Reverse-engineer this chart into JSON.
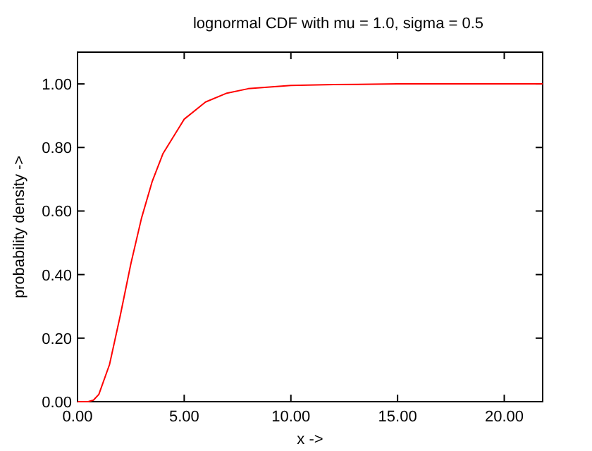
{
  "chart_data": {
    "type": "line",
    "title": "lognormal CDF with mu = 1.0, sigma = 0.5",
    "xlabel": "x ->",
    "ylabel": "probability density ->",
    "x": [
      0,
      0.3,
      0.5,
      0.75,
      1,
      1.5,
      2,
      2.5,
      3,
      3.5,
      4,
      5,
      6,
      7,
      8,
      10,
      12,
      15,
      20,
      21.8
    ],
    "series": [
      {
        "color": "#ff0000",
        "values": [
          0,
          0,
          0,
          0.005,
          0.023,
          0.117,
          0.27,
          0.434,
          0.578,
          0.693,
          0.78,
          0.889,
          0.943,
          0.971,
          0.985,
          0.995,
          0.998,
          1,
          1,
          1
        ]
      }
    ],
    "xlim": [
      0,
      21.8
    ],
    "ylim": [
      0,
      1.1
    ],
    "xticks": [
      {
        "value": 0,
        "label": "0.00"
      },
      {
        "value": 5,
        "label": "5.00"
      },
      {
        "value": 10,
        "label": "10.00"
      },
      {
        "value": 15,
        "label": "15.00"
      },
      {
        "value": 20,
        "label": "20.00"
      }
    ],
    "yticks": [
      {
        "value": 0,
        "label": "0.00"
      },
      {
        "value": 0.2,
        "label": "0.20"
      },
      {
        "value": 0.4,
        "label": "0.40"
      },
      {
        "value": 0.6,
        "label": "0.60"
      },
      {
        "value": 0.8,
        "label": "0.80"
      },
      {
        "value": 1,
        "label": "1.00"
      }
    ],
    "grid": false,
    "marker": "none",
    "line_style": "solid"
  }
}
